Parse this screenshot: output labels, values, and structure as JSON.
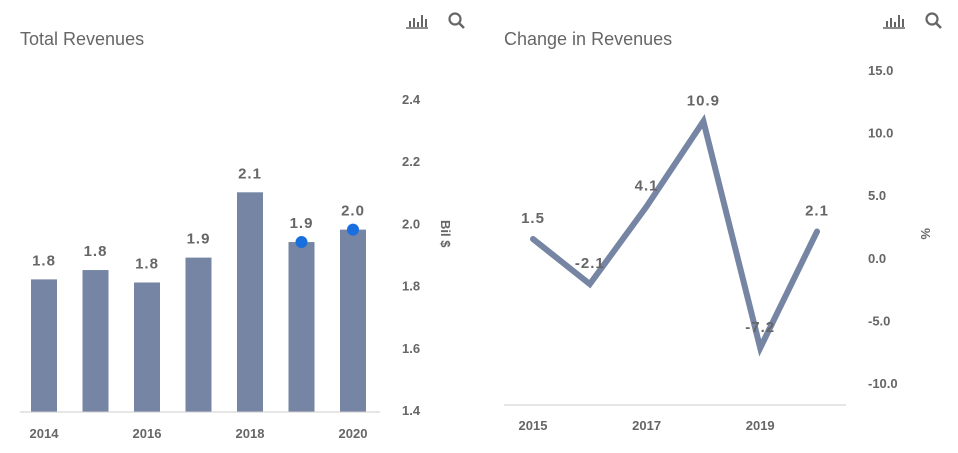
{
  "colors": {
    "bar": "#7585a3",
    "line": "#7585a3",
    "marker": "#1a6fdf",
    "text": "#666666",
    "axis": "#cccccc"
  },
  "icons": [
    "bar-chart-icon",
    "search-icon"
  ],
  "chart_data": [
    {
      "type": "bar",
      "title": "Total Revenues",
      "categories": [
        "2014",
        "2015",
        "2016",
        "2017",
        "2018",
        "2019",
        "2020"
      ],
      "values": [
        1.82,
        1.85,
        1.81,
        1.89,
        2.1,
        1.94,
        1.98
      ],
      "data_labels": [
        "1.8",
        "1.8",
        "1.8",
        "1.9",
        "2.1",
        "1.9",
        "2.0"
      ],
      "markers": {
        "categories": [
          "2019",
          "2020"
        ],
        "values": [
          1.94,
          1.98
        ]
      },
      "x_tick_labels": [
        "2014",
        "2016",
        "2018",
        "2020"
      ],
      "y_ticks": [
        "1.4",
        "1.6",
        "1.8",
        "2.0",
        "2.2",
        "2.4"
      ],
      "ylim": [
        1.4,
        2.4
      ],
      "ylabel": "Bil $",
      "y_axis_position": "right",
      "grid": false
    },
    {
      "type": "line",
      "title": "Change in Revenues",
      "categories": [
        "2015",
        "2016",
        "2017",
        "2018",
        "2019",
        "2020"
      ],
      "values": [
        1.5,
        -2.1,
        4.1,
        10.9,
        -7.2,
        2.1
      ],
      "data_labels": [
        "1.5",
        "-2.1",
        "4.1",
        "10.9",
        "-7.2",
        "2.1"
      ],
      "x_tick_labels": [
        "2015",
        "2017",
        "2019"
      ],
      "y_ticks": [
        "-10.0",
        "-5.0",
        "0.0",
        "5.0",
        "10.0",
        "15.0"
      ],
      "ylim": [
        -10,
        15
      ],
      "ylabel": "%",
      "y_axis_position": "right",
      "grid": false
    }
  ]
}
